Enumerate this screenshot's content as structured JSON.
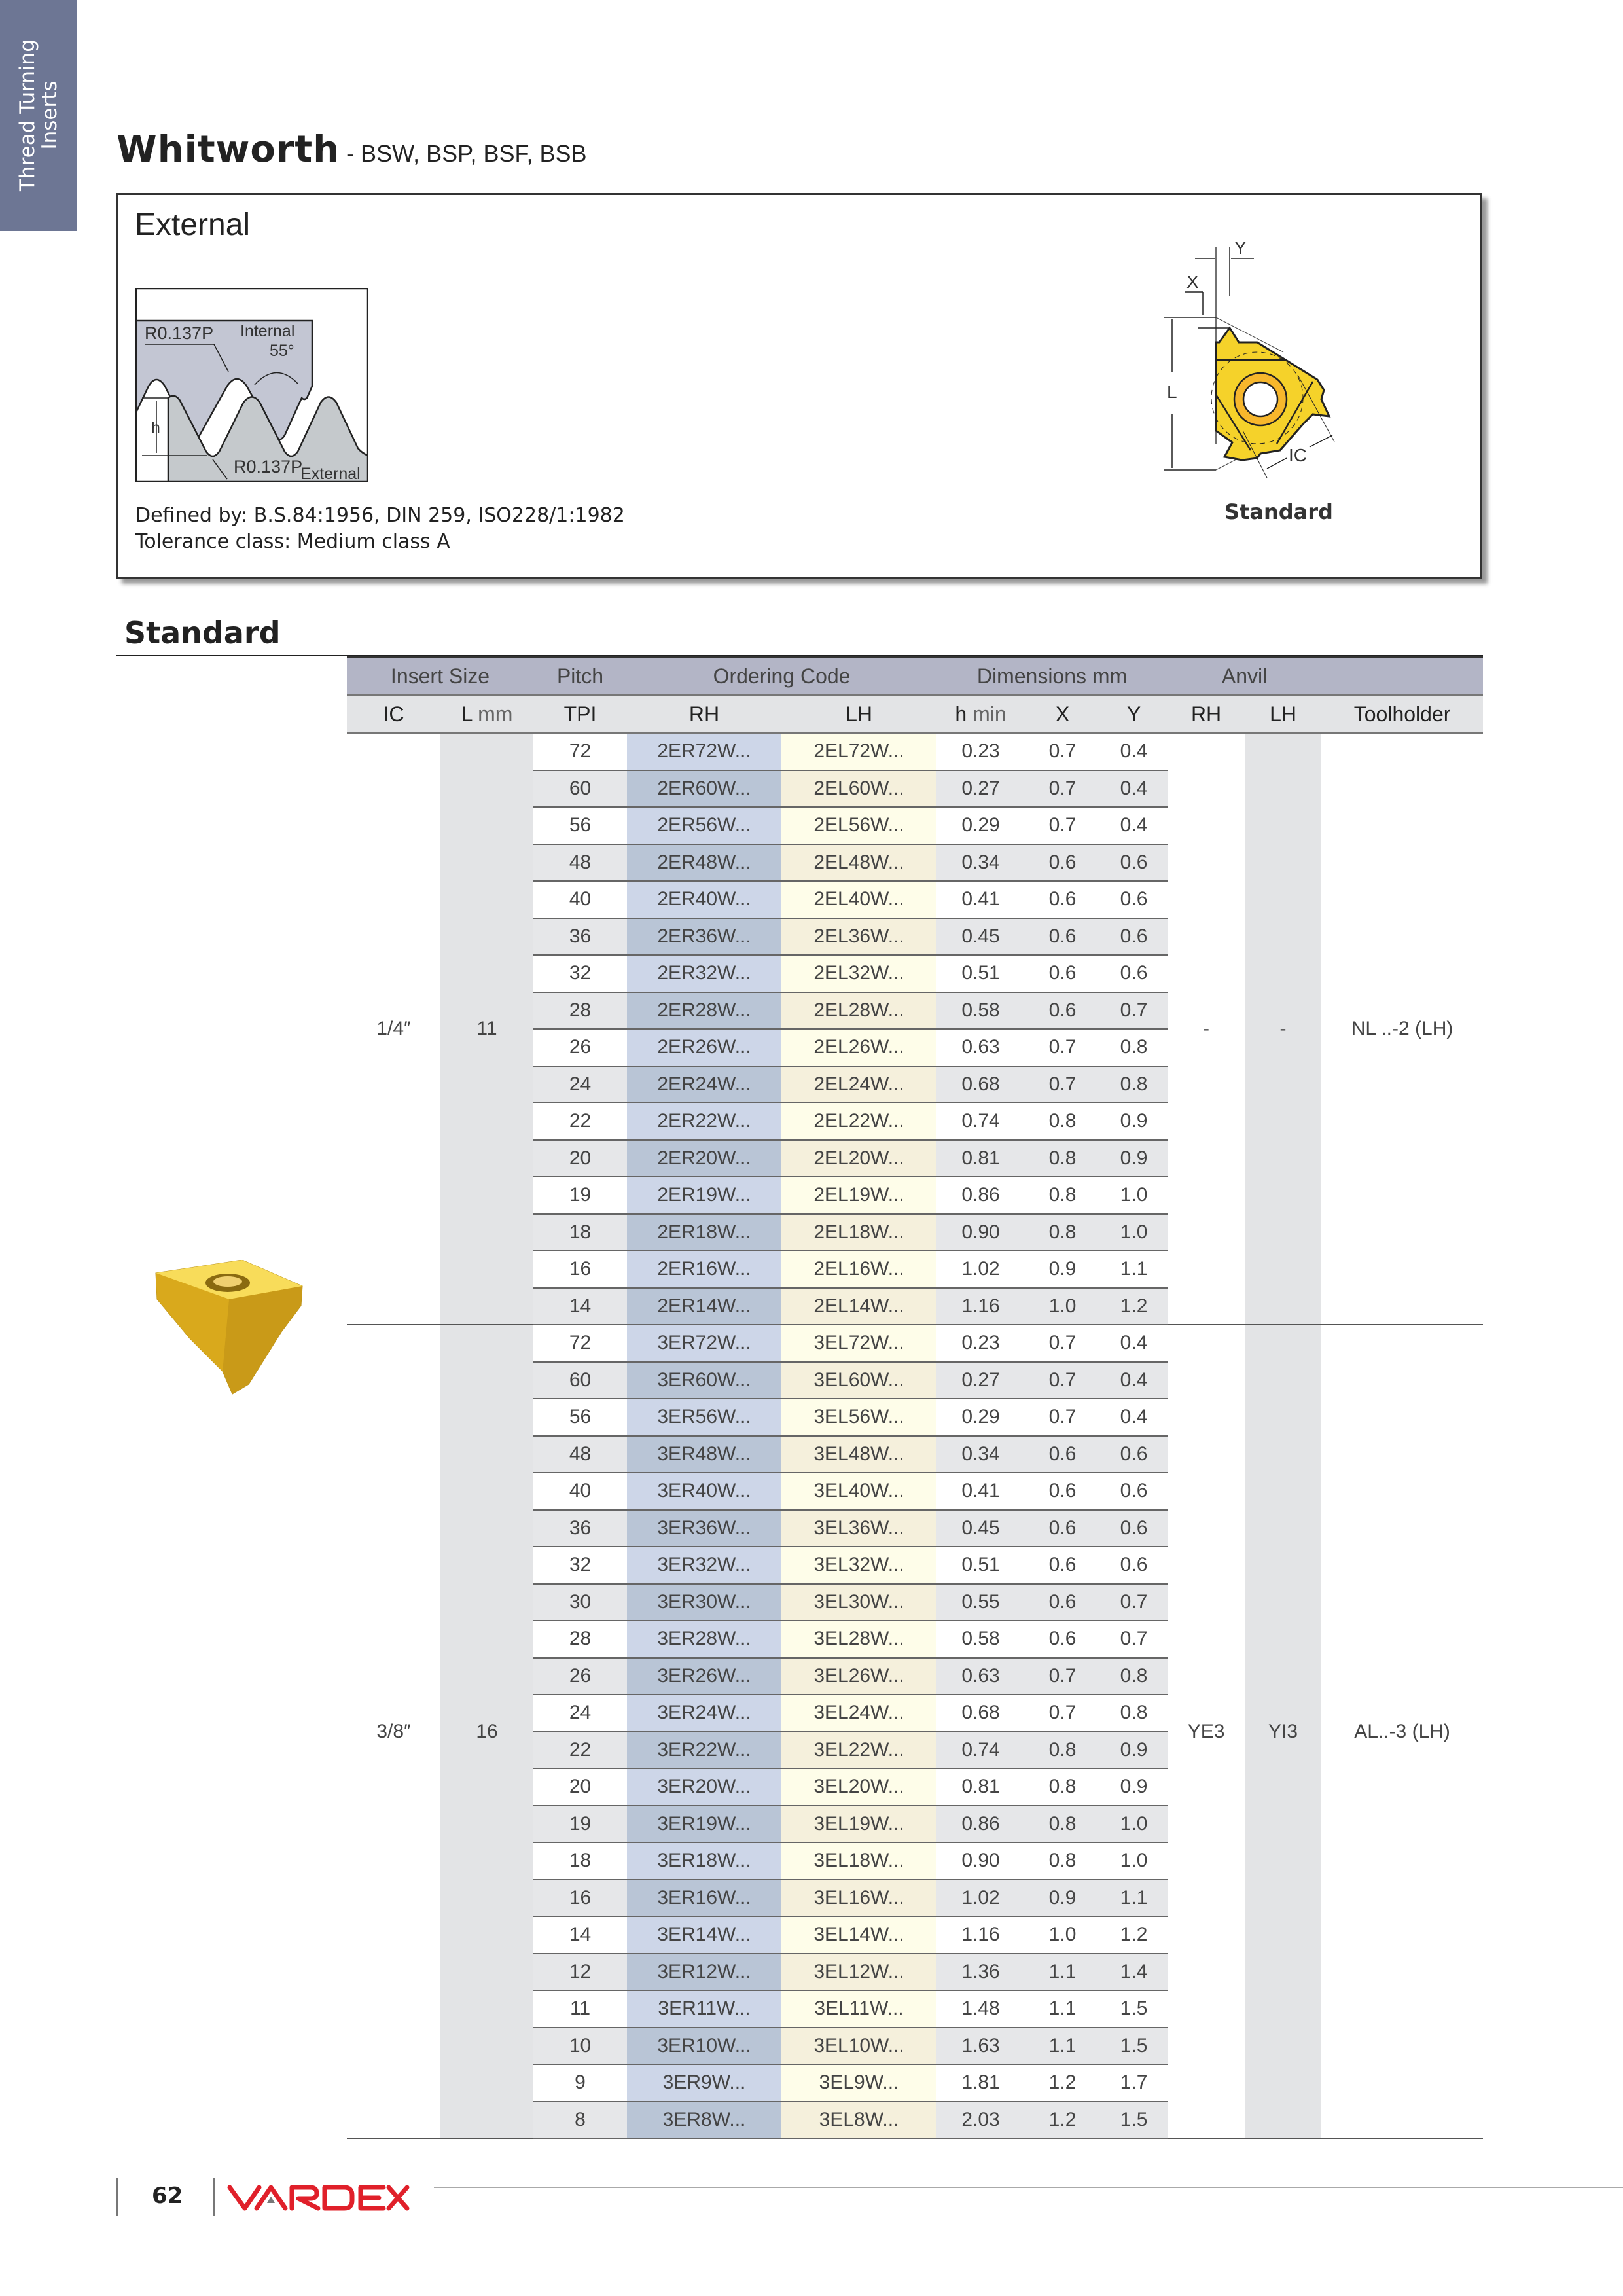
{
  "side_tab": {
    "line1": "Thread Turning",
    "line2": "Inserts"
  },
  "title": {
    "main": "Whitworth",
    "sub": " - BSW, BSP, BSF, BSB"
  },
  "external_box": {
    "title": "External",
    "profile_labels": {
      "radius_internal": "R0.137P",
      "internal": "Internal",
      "angle": "55°",
      "h": "h",
      "radius_external": "R0.137P",
      "external": "External"
    },
    "defined_by": "Defined by: B.S.84:1956, DIN 259, ISO228/1:1982",
    "tolerance": "Tolerance class: Medium class A",
    "insert_labels": {
      "x": "X",
      "y": "Y",
      "l": "L",
      "ic": "IC"
    },
    "insert_caption": "Standard"
  },
  "section_heading": "Standard",
  "table": {
    "group_headers": [
      "Insert Size",
      "Pitch",
      "Ordering Code",
      "Dimensions mm",
      "Anvil",
      ""
    ],
    "columns": {
      "ic": "IC",
      "l": "L",
      "l_unit": " mm",
      "tpi": "TPI",
      "rh": "RH",
      "lh": "LH",
      "h": "h",
      "h_unit": " min",
      "x": "X",
      "y": "Y",
      "anvil_rh": "RH",
      "anvil_lh": "LH",
      "toolholder": "Toolholder"
    },
    "groups": [
      {
        "ic": "1/4″",
        "l": "11",
        "anvil_rh": "-",
        "anvil_lh": "-",
        "toolholder": "NL ..-2 (LH)",
        "rows": [
          [
            "72",
            "2ER72W...",
            "2EL72W...",
            "0.23",
            "0.7",
            "0.4"
          ],
          [
            "60",
            "2ER60W...",
            "2EL60W...",
            "0.27",
            "0.7",
            "0.4"
          ],
          [
            "56",
            "2ER56W...",
            "2EL56W...",
            "0.29",
            "0.7",
            "0.4"
          ],
          [
            "48",
            "2ER48W...",
            "2EL48W...",
            "0.34",
            "0.6",
            "0.6"
          ],
          [
            "40",
            "2ER40W...",
            "2EL40W...",
            "0.41",
            "0.6",
            "0.6"
          ],
          [
            "36",
            "2ER36W...",
            "2EL36W...",
            "0.45",
            "0.6",
            "0.6"
          ],
          [
            "32",
            "2ER32W...",
            "2EL32W...",
            "0.51",
            "0.6",
            "0.6"
          ],
          [
            "28",
            "2ER28W...",
            "2EL28W...",
            "0.58",
            "0.6",
            "0.7"
          ],
          [
            "26",
            "2ER26W...",
            "2EL26W...",
            "0.63",
            "0.7",
            "0.8"
          ],
          [
            "24",
            "2ER24W...",
            "2EL24W...",
            "0.68",
            "0.7",
            "0.8"
          ],
          [
            "22",
            "2ER22W...",
            "2EL22W...",
            "0.74",
            "0.8",
            "0.9"
          ],
          [
            "20",
            "2ER20W...",
            "2EL20W...",
            "0.81",
            "0.8",
            "0.9"
          ],
          [
            "19",
            "2ER19W...",
            "2EL19W...",
            "0.86",
            "0.8",
            "1.0"
          ],
          [
            "18",
            "2ER18W...",
            "2EL18W...",
            "0.90",
            "0.8",
            "1.0"
          ],
          [
            "16",
            "2ER16W...",
            "2EL16W...",
            "1.02",
            "0.9",
            "1.1"
          ],
          [
            "14",
            "2ER14W...",
            "2EL14W...",
            "1.16",
            "1.0",
            "1.2"
          ]
        ]
      },
      {
        "ic": "3/8″",
        "l": "16",
        "anvil_rh": "YE3",
        "anvil_lh": "YI3",
        "toolholder": "AL..-3 (LH)",
        "rows": [
          [
            "72",
            "3ER72W...",
            "3EL72W...",
            "0.23",
            "0.7",
            "0.4"
          ],
          [
            "60",
            "3ER60W...",
            "3EL60W...",
            "0.27",
            "0.7",
            "0.4"
          ],
          [
            "56",
            "3ER56W...",
            "3EL56W...",
            "0.29",
            "0.7",
            "0.4"
          ],
          [
            "48",
            "3ER48W...",
            "3EL48W...",
            "0.34",
            "0.6",
            "0.6"
          ],
          [
            "40",
            "3ER40W...",
            "3EL40W...",
            "0.41",
            "0.6",
            "0.6"
          ],
          [
            "36",
            "3ER36W...",
            "3EL36W...",
            "0.45",
            "0.6",
            "0.6"
          ],
          [
            "32",
            "3ER32W...",
            "3EL32W...",
            "0.51",
            "0.6",
            "0.6"
          ],
          [
            "30",
            "3ER30W...",
            "3EL30W...",
            "0.55",
            "0.6",
            "0.7"
          ],
          [
            "28",
            "3ER28W...",
            "3EL28W...",
            "0.58",
            "0.6",
            "0.7"
          ],
          [
            "26",
            "3ER26W...",
            "3EL26W...",
            "0.63",
            "0.7",
            "0.8"
          ],
          [
            "24",
            "3ER24W...",
            "3EL24W...",
            "0.68",
            "0.7",
            "0.8"
          ],
          [
            "22",
            "3ER22W...",
            "3EL22W...",
            "0.74",
            "0.8",
            "0.9"
          ],
          [
            "20",
            "3ER20W...",
            "3EL20W...",
            "0.81",
            "0.8",
            "0.9"
          ],
          [
            "19",
            "3ER19W...",
            "3EL19W...",
            "0.86",
            "0.8",
            "1.0"
          ],
          [
            "18",
            "3ER18W...",
            "3EL18W...",
            "0.90",
            "0.8",
            "1.0"
          ],
          [
            "16",
            "3ER16W...",
            "3EL16W...",
            "1.02",
            "0.9",
            "1.1"
          ],
          [
            "14",
            "3ER14W...",
            "3EL14W...",
            "1.16",
            "1.0",
            "1.2"
          ],
          [
            "12",
            "3ER12W...",
            "3EL12W...",
            "1.36",
            "1.1",
            "1.4"
          ],
          [
            "11",
            "3ER11W...",
            "3EL11W...",
            "1.48",
            "1.1",
            "1.5"
          ],
          [
            "10",
            "3ER10W...",
            "3EL10W...",
            "1.63",
            "1.1",
            "1.5"
          ],
          [
            "9",
            "3ER9W...",
            "3EL9W...",
            "1.81",
            "1.2",
            "1.7"
          ],
          [
            "8",
            "3ER8W...",
            "3EL8W...",
            "2.03",
            "1.2",
            "1.5"
          ]
        ]
      }
    ]
  },
  "footer": {
    "page_number": "62",
    "logo": "VARDEX"
  },
  "colors": {
    "side_tab": "#6d7694",
    "header_band": "#b3b5c6",
    "rh_column": "#cdd6e8",
    "lh_column": "#fefde9",
    "insert_yellow": "#f5d22a",
    "logo_red": "#e0202a"
  }
}
